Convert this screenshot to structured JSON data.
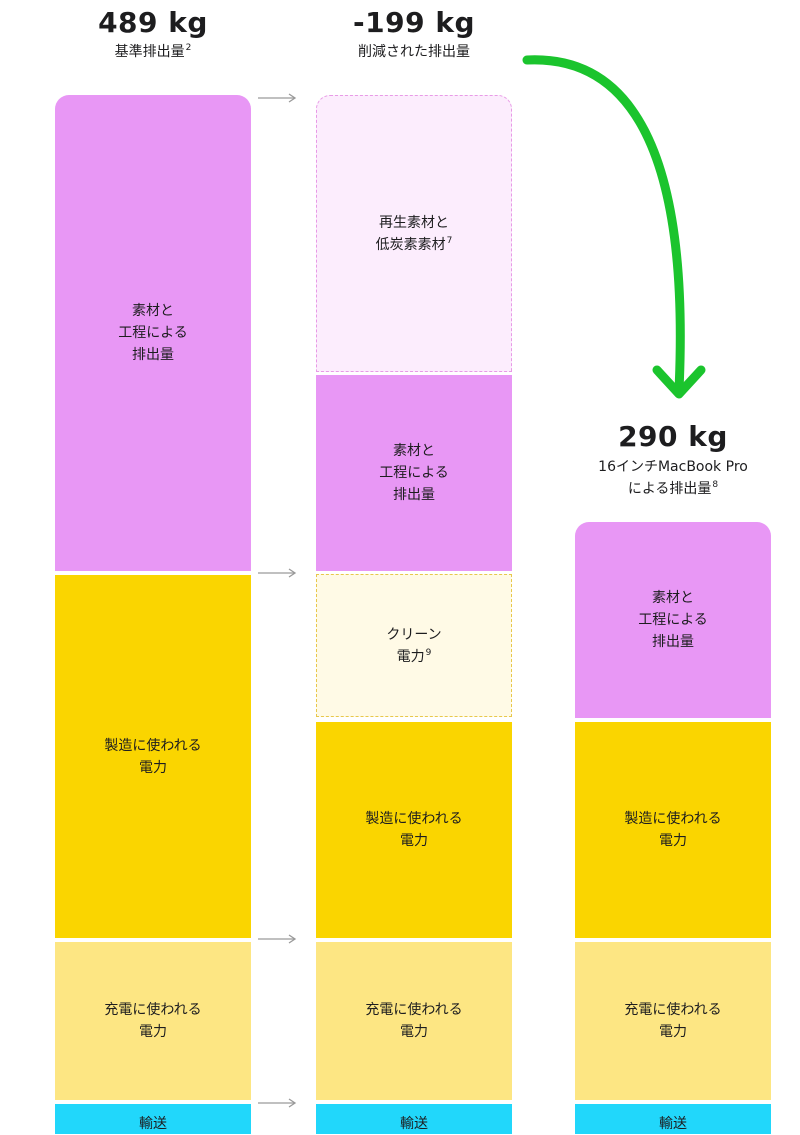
{
  "chart_data": {
    "type": "bar",
    "stacked": true,
    "columns": [
      {
        "title": "489 kg",
        "subtitle": "基準排出量",
        "footnote": "2",
        "segments": [
          {
            "label_lines": [
              "素材と",
              "工程による",
              "排出量"
            ],
            "color": "#e897f5"
          },
          {
            "label_lines": [
              "製造に使われる",
              "電力"
            ],
            "color": "#fad500"
          },
          {
            "label_lines": [
              "充電に使われる",
              "電力"
            ],
            "color": "#fde683"
          },
          {
            "label_lines": [
              "輸送"
            ],
            "color": "#21d7fb"
          }
        ]
      },
      {
        "title": "-199 kg",
        "subtitle": "削減された排出量",
        "footnote": "",
        "segments": [
          {
            "label_lines": [
              "再生素材と",
              "低炭素素材"
            ],
            "footnote": "7",
            "color": "#fcedfd",
            "style": "dashed"
          },
          {
            "label_lines": [
              "素材と",
              "工程による",
              "排出量"
            ],
            "color": "#e897f5"
          },
          {
            "label_lines": [
              "クリーン",
              "電力"
            ],
            "footnote": "9",
            "color": "#fffae6",
            "style": "dashed"
          },
          {
            "label_lines": [
              "製造に使われる",
              "電力"
            ],
            "color": "#fad500"
          },
          {
            "label_lines": [
              "充電に使われる",
              "電力"
            ],
            "color": "#fde683"
          },
          {
            "label_lines": [
              "輸送"
            ],
            "color": "#21d7fb"
          }
        ]
      },
      {
        "title": "290 kg",
        "subtitle_lines": [
          "16インチMacBook Pro",
          "による排出量"
        ],
        "footnote": "8",
        "segments": [
          {
            "label_lines": [
              "素材と",
              "工程による",
              "排出量"
            ],
            "color": "#e897f5"
          },
          {
            "label_lines": [
              "製造に使われる",
              "電力"
            ],
            "color": "#fad500"
          },
          {
            "label_lines": [
              "充電に使われる",
              "電力"
            ],
            "color": "#fde683"
          },
          {
            "label_lines": [
              "輸送"
            ],
            "color": "#21d7fb"
          }
        ]
      }
    ],
    "colors": {
      "materials": "#e897f5",
      "manufacturing_power": "#fad500",
      "charging_power": "#fde683",
      "transport": "#21d7fb",
      "big_arrow": "#1bc42d",
      "small_arrow": "#9a9a9a"
    }
  }
}
